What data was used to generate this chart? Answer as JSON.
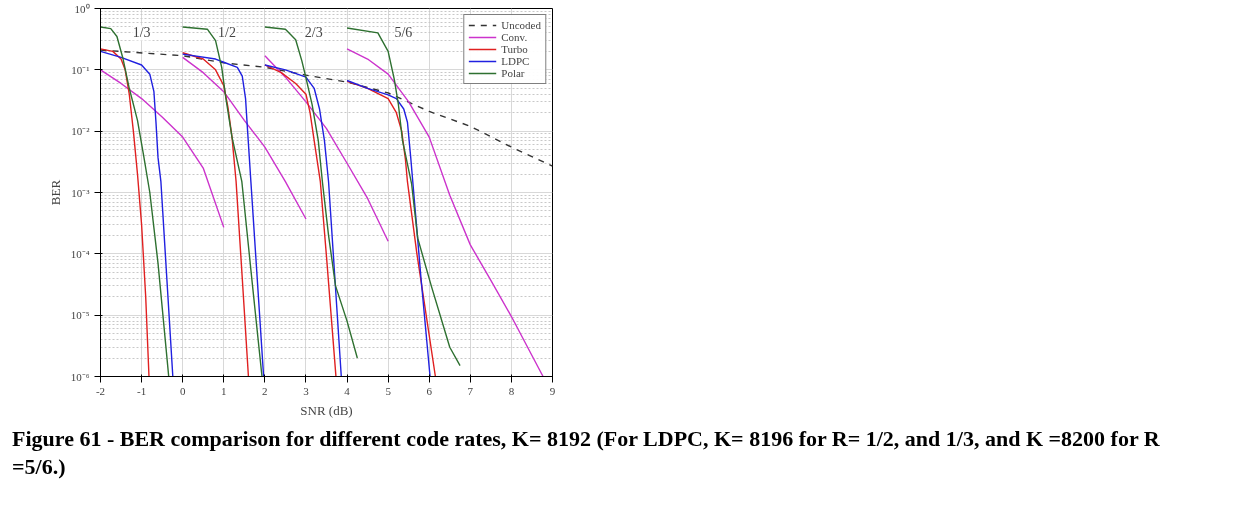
{
  "chart_data": {
    "type": "line",
    "xlabel": "SNR (dB)",
    "ylabel": "BER",
    "log": "y",
    "xlim": [
      -2,
      9
    ],
    "xticks": [
      -2,
      -1,
      0,
      1,
      2,
      3,
      4,
      5,
      6,
      7,
      8,
      9
    ],
    "ylim": [
      1e-06,
      1
    ],
    "yticks": [
      {
        "value": 1e-06,
        "label": "10⁻⁶"
      },
      {
        "value": 1e-05,
        "label": "10⁻⁵"
      },
      {
        "value": 0.0001,
        "label": "10⁻⁴"
      },
      {
        "value": 0.001,
        "label": "10⁻³"
      },
      {
        "value": 0.01,
        "label": "10⁻²"
      },
      {
        "value": 0.1,
        "label": "10⁻¹"
      },
      {
        "value": 1,
        "label": "10⁰"
      }
    ],
    "grid": true,
    "legend": "top right",
    "series": [
      {
        "name": "Uncoded",
        "color": "#333333",
        "line_style": "dashed",
        "x": [
          -2,
          0,
          1,
          2,
          3,
          4,
          5,
          6,
          7,
          8,
          9
        ],
        "values": [
          0.21,
          0.17,
          0.13,
          0.11,
          0.082,
          0.063,
          0.042,
          0.021,
          0.012,
          0.0055,
          0.0027
        ]
      },
      {
        "name": "Conv.",
        "color": "#cc33cc",
        "x": [
          -2,
          -1.5,
          -1,
          -0.5,
          0,
          0.5,
          1
        ],
        "values": [
          0.1,
          0.06,
          0.034,
          0.017,
          0.008,
          0.0025,
          0.00027
        ]
      },
      {
        "color": "#cc33cc",
        "x": [
          0,
          0.5,
          1,
          1.5,
          2,
          2.5,
          3
        ],
        "values": [
          0.16,
          0.09,
          0.044,
          0.015,
          0.0055,
          0.0015,
          0.00037
        ]
      },
      {
        "color": "#cc33cc",
        "x": [
          2,
          2.5,
          3,
          3.5,
          4,
          4.5,
          5
        ],
        "values": [
          0.17,
          0.076,
          0.03,
          0.011,
          0.003,
          0.0008,
          0.00016
        ]
      },
      {
        "color": "#cc33cc",
        "x": [
          4,
          4.5,
          5,
          5.5,
          6,
          6.5,
          7,
          7.5,
          8,
          8.5,
          8.77
        ],
        "values": [
          0.22,
          0.15,
          0.085,
          0.03,
          0.008,
          0.0009,
          0.00014,
          3.7e-05,
          9.5e-06,
          2.2e-06,
          1e-06
        ]
      },
      {
        "name": "Turbo",
        "color": "#e02020",
        "x": [
          -2,
          -1.7,
          -1.5,
          -1.4,
          -1.3,
          -1.2,
          -1.1,
          -1.0,
          -0.9,
          -0.82
        ],
        "values": [
          0.22,
          0.2,
          0.15,
          0.1,
          0.04,
          0.01,
          0.002,
          0.0003,
          2e-05,
          1e-06
        ]
      },
      {
        "color": "#e02020",
        "x": [
          0,
          0.5,
          0.8,
          1.0,
          1.1,
          1.2,
          1.3,
          1.45,
          1.6
        ],
        "values": [
          0.19,
          0.15,
          0.1,
          0.055,
          0.025,
          0.008,
          0.0015,
          4e-05,
          1e-06
        ]
      },
      {
        "color": "#e02020",
        "x": [
          2,
          2.4,
          2.75,
          3,
          3.1,
          3.2,
          3.35,
          3.5,
          3.73
        ],
        "values": [
          0.12,
          0.09,
          0.06,
          0.04,
          0.02,
          0.007,
          0.0015,
          9e-05,
          1e-06
        ]
      },
      {
        "color": "#e02020",
        "x": [
          4,
          4.5,
          5,
          5.2,
          5.33,
          5.42,
          5.47,
          5.7,
          5.9,
          6.15
        ],
        "values": [
          0.065,
          0.05,
          0.034,
          0.02,
          0.01,
          0.0035,
          0.0015,
          0.0001,
          1.3e-05,
          1e-06
        ]
      },
      {
        "name": "LDPC",
        "color": "#2020e0",
        "x": [
          -2,
          -1.5,
          -1.0,
          -0.8,
          -0.7,
          -0.65,
          -0.6,
          -0.53,
          -0.24
        ],
        "values": [
          0.2,
          0.16,
          0.12,
          0.085,
          0.044,
          0.014,
          0.0037,
          0.0015,
          1e-06
        ]
      },
      {
        "color": "#2020e0",
        "x": [
          0,
          0.8,
          1.0,
          1.33,
          1.45,
          1.53,
          1.58,
          1.66,
          1.97
        ],
        "values": [
          0.18,
          0.15,
          0.133,
          0.11,
          0.079,
          0.034,
          0.01,
          0.0015,
          1e-06
        ]
      },
      {
        "color": "#2020e0",
        "x": [
          2,
          2.5,
          3,
          3.2,
          3.33,
          3.45,
          3.55,
          3.7,
          3.86
        ],
        "values": [
          0.12,
          0.1,
          0.076,
          0.05,
          0.023,
          0.007,
          0.0015,
          4.4e-05,
          1e-06
        ]
      },
      {
        "color": "#2020e0",
        "x": [
          4,
          4.5,
          5,
          5.2,
          5.38,
          5.47,
          5.55,
          5.6,
          5.8,
          6.02
        ],
        "values": [
          0.067,
          0.05,
          0.039,
          0.034,
          0.023,
          0.014,
          0.0037,
          0.0015,
          4e-05,
          1e-06
        ]
      },
      {
        "name": "Polar",
        "color": "#2e7030",
        "x": [
          -2,
          -1.75,
          -1.6,
          -1.45,
          -1.3,
          -1.1,
          -0.95,
          -0.8,
          -0.6,
          -0.34
        ],
        "values": [
          0.5,
          0.47,
          0.35,
          0.15,
          0.05,
          0.015,
          0.004,
          0.001,
          7e-05,
          1e-06
        ]
      },
      {
        "color": "#2e7030",
        "x": [
          0,
          0.6,
          0.8,
          0.95,
          1.05,
          1.2,
          1.44,
          1.7,
          1.93
        ],
        "values": [
          0.5,
          0.46,
          0.3,
          0.11,
          0.035,
          0.008,
          0.0015,
          3e-05,
          1e-06
        ]
      },
      {
        "color": "#2e7030",
        "x": [
          2,
          2.5,
          2.75,
          2.9,
          3,
          3.15,
          3.3,
          3.4,
          3.55,
          3.72,
          4,
          4.25
        ],
        "values": [
          0.5,
          0.46,
          0.31,
          0.14,
          0.074,
          0.027,
          0.007,
          0.0015,
          0.0002,
          3e-05,
          8e-06,
          2e-06
        ]
      },
      {
        "color": "#2e7030",
        "x": [
          4,
          4.75,
          5,
          5.15,
          5.25,
          5.35,
          5.57,
          5.72,
          6.05,
          6.5,
          6.75
        ],
        "values": [
          0.48,
          0.4,
          0.2,
          0.07,
          0.027,
          0.007,
          0.0014,
          0.00018,
          3e-05,
          3e-06,
          1.5e-06
        ]
      }
    ],
    "annotations": [
      {
        "text": "1/3",
        "x": -1.0,
        "y": 0.4
      },
      {
        "text": "1/2",
        "x": 1.08,
        "y": 0.4
      },
      {
        "text": "2/3",
        "x": 3.19,
        "y": 0.4
      },
      {
        "text": "5/6",
        "x": 5.37,
        "y": 0.4
      },
      "Figure 61 - BER comparison for different code rates, K= 8192 (For LDPC, K= 8196 for R= 1/2, and 1/3, and K =8200 for R =5/6.)"
    ]
  }
}
